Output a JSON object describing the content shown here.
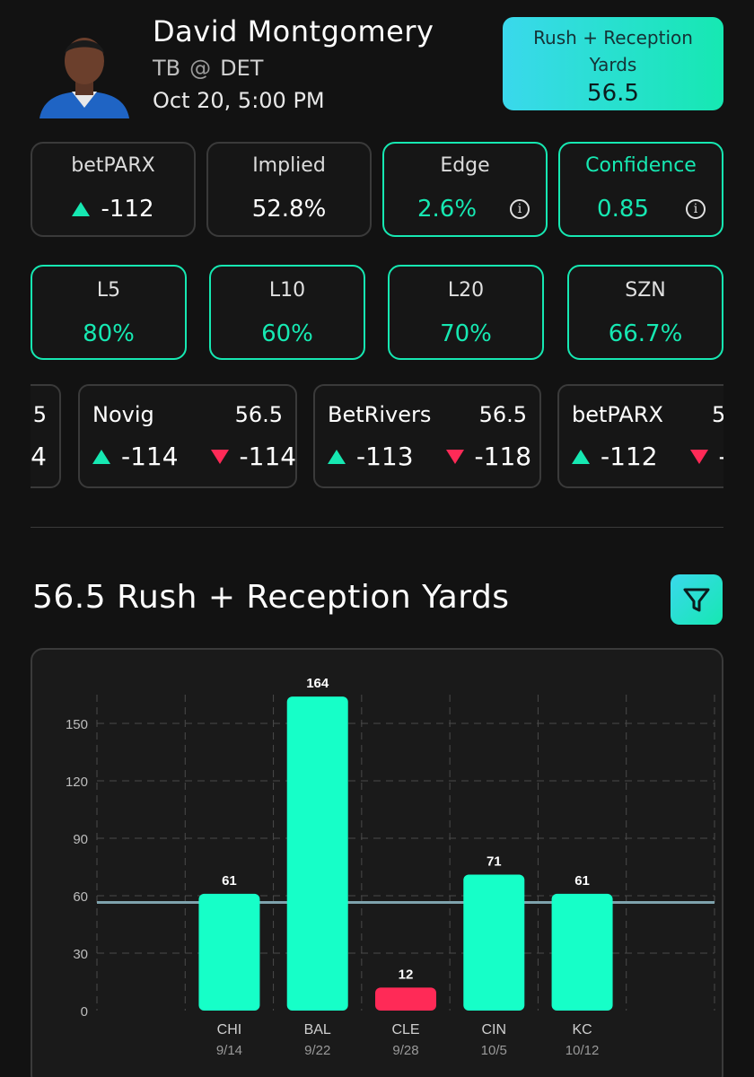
{
  "header": {
    "player_name": "David Montgomery",
    "away_team": "TB",
    "at_symbol": "@",
    "home_team": "DET",
    "game_time": "Oct 20, 5:00 PM",
    "avatar_icon": "player-headshot"
  },
  "prop_badge": {
    "label": "Rush + Reception Yards",
    "value": "56.5",
    "gradient": [
      "#3ad8ec",
      "#16e8b2"
    ]
  },
  "stats": [
    {
      "title": "betPARX",
      "value": "-112",
      "icon": "up-triangle-icon"
    },
    {
      "title": "Implied",
      "value": "52.8%"
    },
    {
      "title": "Edge",
      "value": "2.6%",
      "icon": "info-icon"
    },
    {
      "title": "Confidence",
      "value": "0.85",
      "icon": "info-icon"
    }
  ],
  "hit_rates": [
    {
      "title": "L5",
      "value": "80%"
    },
    {
      "title": "L10",
      "value": "60%"
    },
    {
      "title": "L20",
      "value": "70%"
    },
    {
      "title": "SZN",
      "value": "66.7%"
    }
  ],
  "books": [
    {
      "name": "",
      "line": "5",
      "over": "",
      "under": "4"
    },
    {
      "name": "Novig",
      "line": "56.5",
      "over": "-114",
      "under": "-114"
    },
    {
      "name": "BetRivers",
      "line": "56.5",
      "over": "-113",
      "under": "-118"
    },
    {
      "name": "betPARX",
      "line": "5",
      "over": "-112",
      "under": "-"
    }
  ],
  "section_title": "56.5 Rush + Reception Yards",
  "filter_icon": "filter-icon",
  "colors": {
    "accent": "#16e8b2",
    "over": "#16e8b2",
    "under": "#ff2a57",
    "line": "#7fa3ad"
  },
  "chart_data": {
    "type": "bar",
    "categories": [
      "CHI",
      "BAL",
      "CLE",
      "CIN",
      "KC"
    ],
    "dates": [
      "9/14",
      "9/22",
      "9/28",
      "10/5",
      "10/12"
    ],
    "values": [
      61,
      164,
      12,
      71,
      61
    ],
    "threshold": 56.5,
    "ylim": [
      0,
      165
    ],
    "yticks": [
      0,
      30,
      60,
      90,
      120,
      150
    ],
    "grid": true,
    "bar_colors": [
      "#16ffc8",
      "#16ffc8",
      "#ff2a57",
      "#16ffc8",
      "#16ffc8"
    ]
  }
}
